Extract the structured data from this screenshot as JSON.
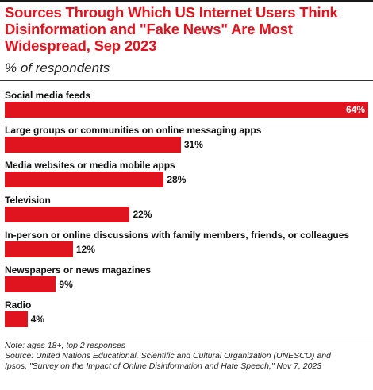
{
  "chart_data": {
    "type": "bar",
    "orientation": "horizontal",
    "title": "Sources Through Which US Internet Users Think Disinformation and \"Fake News\" Are Most Widespread, Sep 2023",
    "subtitle": "% of respondents",
    "categories": [
      "Social media feeds",
      "Large groups or communities on online messaging apps",
      "Media websites or media mobile apps",
      "Television",
      "In-person or online discussions with family members, friends, or colleagues",
      "Newspapers or news magazines",
      "Radio"
    ],
    "values": [
      64,
      31,
      28,
      22,
      12,
      9,
      4
    ],
    "value_labels": [
      "64%",
      "31%",
      "28%",
      "22%",
      "12%",
      "9%",
      "4%"
    ],
    "xlim": [
      0,
      64
    ],
    "grid": false,
    "legend": "none",
    "colors": {
      "bar": "#e0141e",
      "title": "#e0141e"
    }
  },
  "footnote": {
    "note": "Note: ages 18+; top 2 responses",
    "source_line1": "Source: United Nations Educational, Scientific and Cultural Organization (UNESCO) and",
    "source_line2": "Ipsos, \"Survey on the Impact of Online Disinformation and Hate Speech,\" Nov 7, 2023"
  }
}
